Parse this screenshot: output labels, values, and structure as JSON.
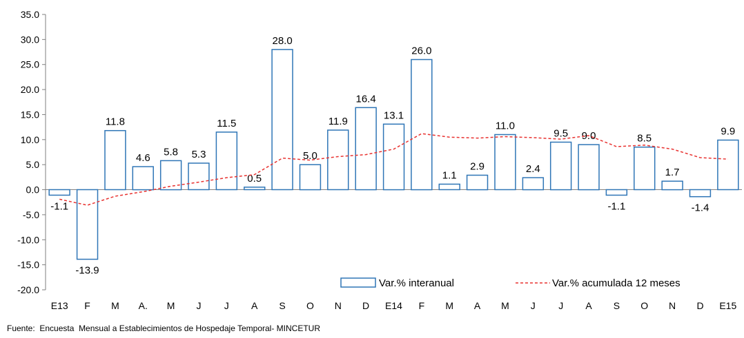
{
  "chart_data": {
    "type": "bar",
    "categories": [
      "E13",
      "F",
      "M",
      "A.",
      "M",
      "J",
      "J",
      "A",
      "S",
      "O",
      "N",
      "D",
      "E14",
      "F",
      "M",
      "A",
      "M",
      "J",
      "J",
      "A",
      "S",
      "O",
      "N",
      "D",
      "E15"
    ],
    "series": [
      {
        "name": "Var.% interanual",
        "type": "bar",
        "values": [
          -1.1,
          -13.9,
          11.8,
          4.6,
          5.8,
          5.3,
          11.5,
          0.5,
          28.0,
          5.0,
          11.9,
          16.4,
          13.1,
          26.0,
          1.1,
          2.9,
          11.0,
          2.4,
          9.5,
          9.0,
          -1.1,
          8.5,
          1.7,
          -1.4,
          9.9
        ],
        "labels": [
          "-1.1",
          "-13.9",
          "11.8",
          "4.6",
          "5.8",
          "5.3",
          "11.5",
          "0.5",
          "28.0",
          "5.0",
          "11.9",
          "16.4",
          "13.1",
          "26.0",
          "1.1",
          "2.9",
          "11.0",
          "2.4",
          "9.5",
          "9.0",
          "-1.1",
          "8.5",
          "1.7",
          "-1.4",
          "9.9"
        ]
      },
      {
        "name": "Var.% acumulada 12 meses",
        "type": "line",
        "values": [
          -1.9,
          -3.1,
          -1.3,
          -0.4,
          0.7,
          1.5,
          2.4,
          3.0,
          6.3,
          5.9,
          6.6,
          7.0,
          8.1,
          11.2,
          10.5,
          10.3,
          10.6,
          10.4,
          10.1,
          10.8,
          8.6,
          8.9,
          8.1,
          6.4,
          6.1
        ]
      }
    ],
    "ylim": [
      -20.0,
      35.0
    ],
    "yticks": [
      "-20.0",
      "-15.0",
      "-10.0",
      "-5.0",
      "0.0",
      "5.0",
      "10.0",
      "15.0",
      "20.0",
      "25.0",
      "30.0",
      "35.0"
    ],
    "legend_position": "bottom-right",
    "colors": {
      "bar_edge": "#2e75b6",
      "line": "#e8312f",
      "axis": "#7f7f7f"
    }
  },
  "footer": {
    "source": "Fuente:  Encuesta  Mensual a Establecimientos de Hospedaje Temporal- MINCETUR"
  }
}
